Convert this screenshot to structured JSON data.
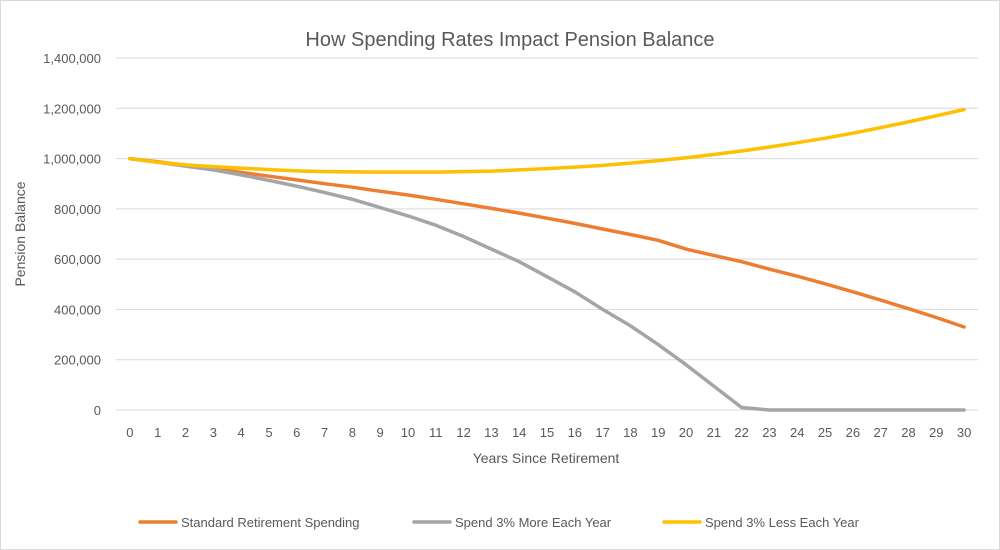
{
  "chart_data": {
    "type": "line",
    "title": "How Spending Rates Impact Pension Balance",
    "xlabel": "Years Since Retirement",
    "ylabel": "Pension Balance",
    "ylim": [
      0,
      1400000
    ],
    "yticks": [
      0,
      200000,
      400000,
      600000,
      800000,
      1000000,
      1200000,
      1400000
    ],
    "ytick_labels": [
      "0",
      "200,000",
      "400,000",
      "600,000",
      "800,000",
      "1,000,000",
      "1,200,000",
      "1,400,000"
    ],
    "x": [
      0,
      1,
      2,
      3,
      4,
      5,
      6,
      7,
      8,
      9,
      10,
      11,
      12,
      13,
      14,
      15,
      16,
      17,
      18,
      19,
      20,
      21,
      22,
      23,
      24,
      25,
      26,
      27,
      28,
      29,
      30
    ],
    "grid": true,
    "legend_position": "bottom",
    "series": [
      {
        "name": "Standard Retirement Spending",
        "color": "#ED7D31",
        "values": [
          1000000,
          987000,
          974000,
          960000,
          945000,
          930000,
          915000,
          900000,
          886000,
          870000,
          855000,
          838000,
          820000,
          802000,
          783000,
          763000,
          742000,
          720000,
          698000,
          675000,
          640000,
          615000,
          590000,
          560000,
          532000,
          502000,
          470000,
          437000,
          403000,
          368000,
          330000
        ]
      },
      {
        "name": "Spend 3% More Each Year",
        "color": "#A5A5A5",
        "values": [
          1000000,
          985000,
          970000,
          955000,
          935000,
          913000,
          890000,
          865000,
          838000,
          805000,
          772000,
          735000,
          690000,
          640000,
          590000,
          530000,
          470000,
          400000,
          335000,
          260000,
          180000,
          95000,
          10000,
          0,
          0,
          0,
          0,
          0,
          0,
          0,
          0
        ]
      },
      {
        "name": "Spend 3% Less Each Year",
        "color": "#FFC000",
        "values": [
          1000000,
          985000,
          975000,
          968000,
          962000,
          956000,
          951000,
          948000,
          947000,
          946000,
          946000,
          946000,
          948000,
          950000,
          955000,
          960000,
          966000,
          973000,
          982000,
          992000,
          1003000,
          1016000,
          1030000,
          1046000,
          1063000,
          1081000,
          1101000,
          1123000,
          1146000,
          1170000,
          1195000
        ]
      }
    ]
  }
}
